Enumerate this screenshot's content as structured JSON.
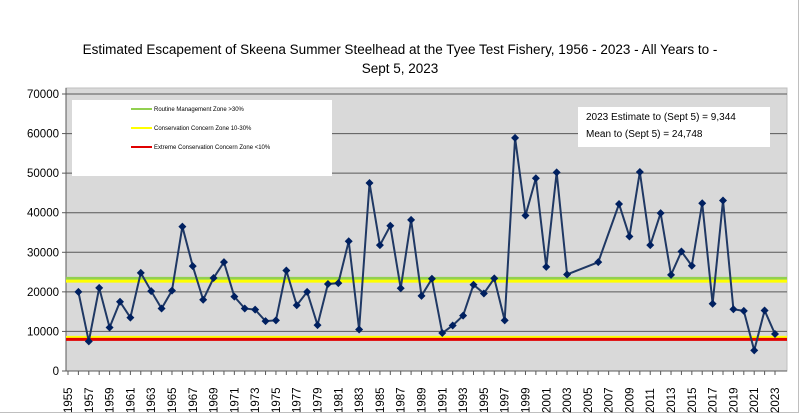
{
  "chart_data": {
    "type": "line",
    "title_line1": "Estimated Escapement of Skeena Summer Steelhead at the Tyee Test Fishery, 1956 - 2023 - All Years to -",
    "title_line2": "Sept 5, 2023",
    "xlabel": "",
    "ylabel": "",
    "xlim": [
      1955,
      2023
    ],
    "ylim": [
      0,
      70000
    ],
    "yticks": [
      0,
      10000,
      20000,
      30000,
      40000,
      50000,
      60000,
      70000
    ],
    "xticks": [
      1955,
      1957,
      1959,
      1961,
      1963,
      1965,
      1967,
      1969,
      1971,
      1973,
      1975,
      1977,
      1979,
      1981,
      1983,
      1985,
      1987,
      1989,
      1991,
      1993,
      1995,
      1997,
      1999,
      2001,
      2003,
      2005,
      2007,
      2009,
      2011,
      2013,
      2015,
      2017,
      2019,
      2021,
      2023
    ],
    "grid": true,
    "series": [
      {
        "name": "Escapement",
        "color": "#1f3864",
        "x": [
          1956,
          1957,
          1958,
          1959,
          1960,
          1961,
          1962,
          1963,
          1964,
          1965,
          1966,
          1967,
          1968,
          1969,
          1970,
          1971,
          1972,
          1973,
          1974,
          1975,
          1976,
          1977,
          1978,
          1979,
          1980,
          1981,
          1982,
          1983,
          1984,
          1985,
          1986,
          1987,
          1988,
          1989,
          1990,
          1991,
          1992,
          1993,
          1994,
          1995,
          1996,
          1997,
          1998,
          1999,
          2000,
          2001,
          2002,
          2003,
          2006,
          2008,
          2009,
          2010,
          2011,
          2012,
          2013,
          2014,
          2015,
          2016,
          2017,
          2018,
          2019,
          2020,
          2021,
          2022,
          2023
        ],
        "y": [
          20000,
          7500,
          21000,
          11000,
          17500,
          13500,
          24800,
          20200,
          15800,
          20300,
          36500,
          26500,
          18000,
          23500,
          27500,
          18800,
          15800,
          15500,
          12600,
          12800,
          25400,
          16600,
          20000,
          11600,
          22000,
          22200,
          32800,
          10500,
          47500,
          31800,
          36700,
          20900,
          38200,
          19000,
          23300,
          9600,
          11500,
          14000,
          21800,
          19600,
          23400,
          12800,
          58900,
          39300,
          48700,
          26300,
          50200,
          24400,
          27500,
          42200,
          34000,
          50300,
          31800,
          39900,
          24300,
          30200,
          26600,
          42400,
          17000,
          43100,
          15600,
          15200,
          5200,
          15300,
          9344
        ]
      }
    ],
    "reference_lines": [
      {
        "name": "Routine Management Zone >30%",
        "value": 23400,
        "color": "#92d050"
      },
      {
        "name": "Conservation Concern Zone 10-30%",
        "value": 22700,
        "color": "#ffff00"
      },
      {
        "name": "Conservation Concern Zone 10-30%",
        "value": 8500,
        "color": "#ffff00"
      },
      {
        "name": "Extreme Conservation Concern Zone <10%",
        "value": 8000,
        "color": "#e00000"
      }
    ],
    "legend": {
      "placement": "top-left",
      "entries": [
        {
          "label": "Routine Management Zone >30%",
          "color": "#92d050"
        },
        {
          "label": "Conservation Concern Zone 10-30%",
          "color": "#ffff00"
        },
        {
          "label": "Extreme Conservation Concern Zone <10%",
          "color": "#e00000"
        }
      ]
    },
    "annotations": [
      "2023 Estimate to (Sept 5) =  9,344",
      "Mean to (Sept 5) = 24,748"
    ]
  }
}
